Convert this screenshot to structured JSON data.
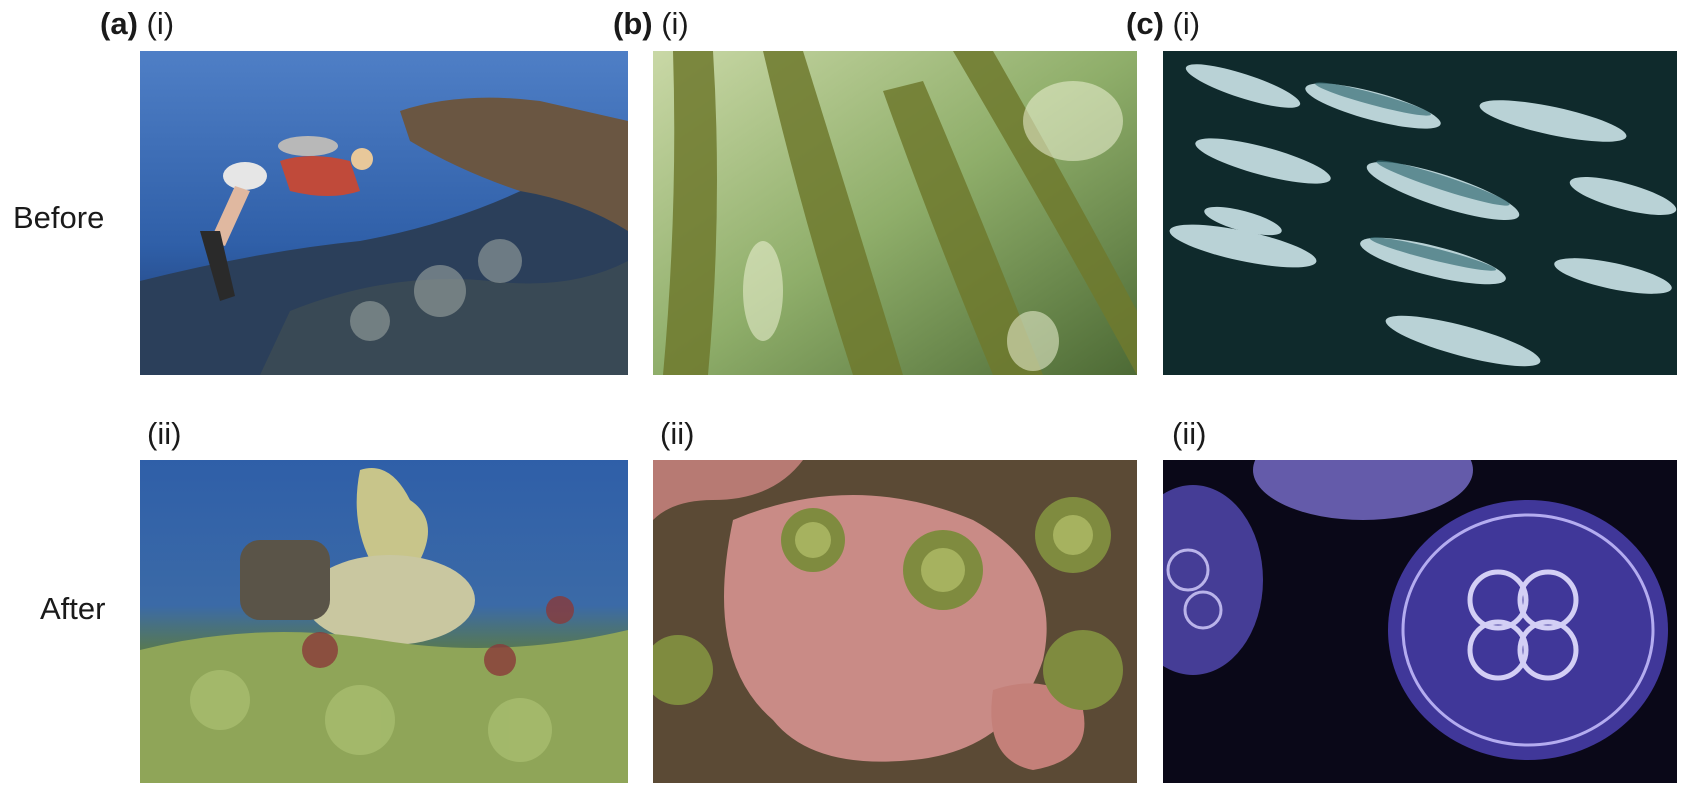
{
  "rows": {
    "before": "Before",
    "after": "After"
  },
  "panels": [
    {
      "letter": "(a)",
      "top": "(i)",
      "bottom": "(ii)",
      "top_photo": "scuba-diver-over-healthy-coral-reef",
      "bottom_photo": "algae-covered-degraded-reef"
    },
    {
      "letter": "(b)",
      "top": "(i)",
      "bottom": "(ii)",
      "top_photo": "kelp-forest",
      "bottom_photo": "sea-urchins-on-pink-coralline-rock"
    },
    {
      "letter": "(c)",
      "top": "(i)",
      "bottom": "(ii)",
      "top_photo": "school-of-mackerel",
      "bottom_photo": "moon-jellyfish"
    }
  ],
  "colors": {
    "reef_water": "#2f5fa8",
    "kelp_green": "#8fae6a",
    "fish_dark": "#0f2a2c",
    "urchin_pink": "#c98b86",
    "jelly_purple": "#4a3fb0"
  }
}
